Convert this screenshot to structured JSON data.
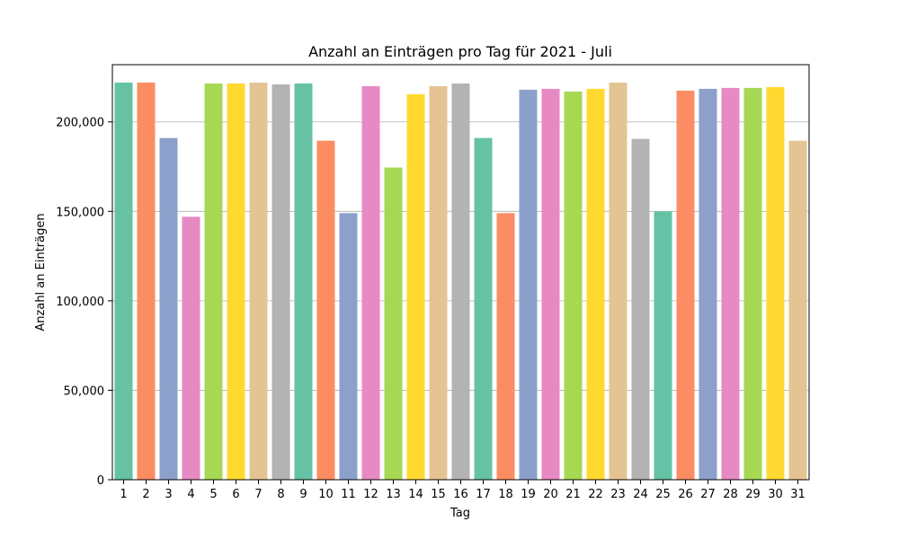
{
  "chart_data": {
    "type": "bar",
    "title": "Anzahl an Einträgen pro Tag für 2021 - Juli",
    "xlabel": "Tag",
    "ylabel": "Anzahl an Einträgen",
    "ylim": [
      0,
      232000
    ],
    "yticks": [
      0,
      50000,
      100000,
      150000,
      200000
    ],
    "ytick_labels": [
      "0",
      "50,000",
      "100,000",
      "150,000",
      "200,000"
    ],
    "grid": "y",
    "categories": [
      "1",
      "2",
      "3",
      "4",
      "5",
      "6",
      "7",
      "8",
      "9",
      "10",
      "11",
      "12",
      "13",
      "14",
      "15",
      "16",
      "17",
      "18",
      "19",
      "20",
      "21",
      "22",
      "23",
      "24",
      "25",
      "26",
      "27",
      "28",
      "29",
      "30",
      "31"
    ],
    "values": [
      222000,
      222000,
      191000,
      147000,
      221500,
      221500,
      222000,
      221000,
      221500,
      189500,
      149000,
      220000,
      174500,
      215500,
      220000,
      221500,
      191000,
      149000,
      218000,
      218500,
      217000,
      218500,
      222000,
      190500,
      150000,
      217500,
      218500,
      219000,
      219000,
      219500,
      189500
    ],
    "palette": [
      "#66c2a5",
      "#fc8d62",
      "#8da0cb",
      "#e78ac3",
      "#a6d854",
      "#ffd92f",
      "#e5c494",
      "#b3b3b3"
    ]
  }
}
